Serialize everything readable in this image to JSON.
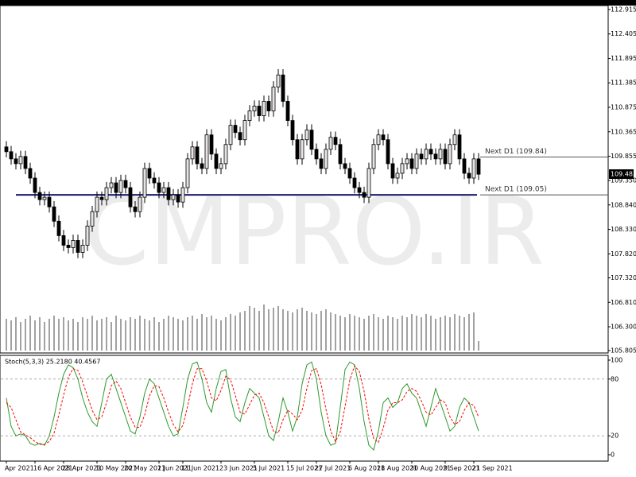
{
  "chart_data": {
    "type": "candlestick",
    "watermark": "CMPRO.IR",
    "ylim": [
      105.77,
      112.98
    ],
    "yticks": [
      112.915,
      112.405,
      111.895,
      111.385,
      110.875,
      110.365,
      109.855,
      {
        "value": 109.35,
        "label": "109.350"
      },
      {
        "value": 108.84,
        "label": "108.840"
      },
      {
        "value": 108.33,
        "label": "108.330"
      },
      {
        "value": 107.82,
        "label": "107.820"
      },
      {
        "value": 107.32,
        "label": "107.320"
      },
      {
        "value": 106.81,
        "label": "106.810"
      },
      {
        "value": 106.3,
        "label": "106.300"
      },
      105.805
    ],
    "last_price": 109.483,
    "levels": [
      {
        "label": "Next D1 (109.84)",
        "value": 109.84
      },
      {
        "label": "Next D1 (109.05)",
        "value": 109.05
      }
    ],
    "level_line_color": "#1a1a6e",
    "up_color": "#e8e4e4",
    "down_color": "#000000",
    "categories": [
      "Apr 2021",
      null,
      null,
      null,
      null,
      null,
      "16 Apr 2021",
      null,
      null,
      null,
      null,
      null,
      "28 Apr 2021",
      null,
      null,
      null,
      null,
      null,
      null,
      "10 May 2021",
      null,
      null,
      null,
      null,
      null,
      "20 May 2021",
      null,
      null,
      null,
      null,
      null,
      null,
      "1 Jun 2021",
      null,
      null,
      null,
      null,
      "11 Jun 2021",
      null,
      null,
      null,
      null,
      null,
      null,
      null,
      "23 Jun 2021",
      null,
      null,
      null,
      null,
      null,
      null,
      "5 Jul 2021",
      null,
      null,
      null,
      null,
      null,
      null,
      "15 Jul 2021",
      null,
      null,
      null,
      null,
      null,
      "27 Jul 2021",
      null,
      null,
      null,
      null,
      null,
      null,
      "6 Aug 2021",
      null,
      null,
      null,
      null,
      null,
      "18 Aug 2021",
      null,
      null,
      null,
      null,
      null,
      null,
      "30 Aug 2021",
      null,
      null,
      null,
      null,
      null,
      null,
      "9 Sep 2021",
      null,
      null,
      null,
      null,
      null,
      "21 Sep 2021",
      null
    ],
    "ohlc": [
      [
        110.05,
        110.17,
        109.83,
        109.95
      ],
      [
        109.95,
        110.07,
        109.68,
        109.8
      ],
      [
        109.8,
        109.92,
        109.58,
        109.7
      ],
      [
        109.7,
        109.97,
        109.58,
        109.85
      ],
      [
        109.85,
        109.97,
        109.48,
        109.6
      ],
      [
        109.6,
        109.72,
        109.28,
        109.4
      ],
      [
        109.4,
        109.52,
        108.98,
        109.1
      ],
      [
        109.1,
        109.22,
        108.83,
        108.95
      ],
      [
        108.95,
        109.12,
        108.83,
        109.0
      ],
      [
        109.0,
        109.12,
        108.68,
        108.8
      ],
      [
        108.8,
        108.92,
        108.38,
        108.5
      ],
      [
        108.5,
        108.62,
        108.08,
        108.2
      ],
      [
        108.2,
        108.32,
        107.88,
        108.0
      ],
      [
        108.0,
        108.12,
        107.83,
        107.95
      ],
      [
        107.95,
        108.22,
        107.83,
        108.1
      ],
      [
        108.1,
        108.22,
        107.73,
        107.85
      ],
      [
        107.85,
        108.12,
        107.73,
        108.0
      ],
      [
        108.0,
        108.52,
        107.88,
        108.4
      ],
      [
        108.4,
        108.82,
        108.28,
        108.7
      ],
      [
        108.7,
        109.12,
        108.58,
        109.0
      ],
      [
        109.0,
        109.12,
        108.83,
        108.95
      ],
      [
        108.95,
        109.32,
        108.83,
        109.2
      ],
      [
        109.2,
        109.42,
        109.08,
        109.3
      ],
      [
        109.3,
        109.42,
        108.98,
        109.1
      ],
      [
        109.1,
        109.47,
        108.98,
        109.35
      ],
      [
        109.35,
        109.47,
        109.08,
        109.2
      ],
      [
        109.2,
        109.32,
        108.68,
        108.8
      ],
      [
        108.8,
        108.92,
        108.58,
        108.7
      ],
      [
        108.7,
        109.12,
        108.58,
        109.0
      ],
      [
        109.0,
        109.72,
        108.88,
        109.6
      ],
      [
        109.6,
        109.72,
        109.28,
        109.4
      ],
      [
        109.4,
        109.52,
        109.18,
        109.3
      ],
      [
        109.3,
        109.42,
        108.98,
        109.1
      ],
      [
        109.1,
        109.32,
        108.98,
        109.2
      ],
      [
        109.2,
        109.32,
        108.83,
        108.95
      ],
      [
        108.95,
        109.17,
        108.83,
        109.05
      ],
      [
        109.05,
        109.17,
        108.78,
        108.9
      ],
      [
        108.9,
        109.32,
        108.78,
        109.2
      ],
      [
        109.2,
        109.92,
        109.08,
        109.8
      ],
      [
        109.8,
        110.17,
        109.68,
        110.05
      ],
      [
        110.05,
        110.17,
        109.58,
        109.7
      ],
      [
        109.7,
        109.82,
        109.48,
        109.6
      ],
      [
        109.6,
        110.42,
        109.48,
        110.3
      ],
      [
        110.3,
        110.42,
        109.78,
        109.9
      ],
      [
        109.9,
        110.02,
        109.48,
        109.6
      ],
      [
        109.6,
        109.82,
        109.48,
        109.7
      ],
      [
        109.7,
        110.22,
        109.58,
        110.1
      ],
      [
        110.1,
        110.62,
        109.98,
        110.5
      ],
      [
        110.5,
        110.62,
        110.23,
        110.35
      ],
      [
        110.35,
        110.47,
        110.08,
        110.2
      ],
      [
        110.2,
        110.72,
        110.08,
        110.6
      ],
      [
        110.6,
        110.92,
        110.48,
        110.8
      ],
      [
        110.8,
        111.02,
        110.68,
        110.9
      ],
      [
        110.9,
        111.02,
        110.58,
        110.7
      ],
      [
        110.7,
        111.12,
        110.58,
        111.0
      ],
      [
        111.0,
        111.12,
        110.68,
        110.8
      ],
      [
        110.8,
        111.42,
        110.68,
        111.3
      ],
      [
        111.3,
        111.67,
        111.18,
        111.55
      ],
      [
        111.55,
        111.67,
        110.88,
        111.0
      ],
      [
        111.0,
        111.12,
        110.48,
        110.6
      ],
      [
        110.6,
        110.72,
        110.08,
        110.2
      ],
      [
        110.2,
        110.32,
        109.68,
        109.8
      ],
      [
        109.8,
        110.32,
        109.68,
        110.2
      ],
      [
        110.2,
        110.52,
        110.08,
        110.4
      ],
      [
        110.4,
        110.52,
        109.88,
        110.0
      ],
      [
        110.0,
        110.12,
        109.68,
        109.8
      ],
      [
        109.8,
        109.92,
        109.48,
        109.6
      ],
      [
        109.6,
        110.12,
        109.48,
        110.0
      ],
      [
        110.0,
        110.37,
        109.88,
        110.25
      ],
      [
        110.25,
        110.37,
        109.98,
        110.1
      ],
      [
        110.1,
        110.22,
        109.58,
        109.7
      ],
      [
        109.7,
        109.82,
        109.48,
        109.6
      ],
      [
        109.6,
        109.72,
        109.28,
        109.4
      ],
      [
        109.4,
        109.52,
        109.08,
        109.2
      ],
      [
        109.2,
        109.32,
        108.98,
        109.1
      ],
      [
        109.1,
        109.22,
        108.88,
        109.0
      ],
      [
        109.0,
        109.72,
        108.88,
        109.6
      ],
      [
        109.6,
        110.22,
        109.48,
        110.1
      ],
      [
        110.1,
        110.42,
        109.98,
        110.3
      ],
      [
        110.3,
        110.42,
        110.08,
        110.2
      ],
      [
        110.2,
        110.32,
        109.58,
        109.7
      ],
      [
        109.7,
        109.82,
        109.28,
        109.4
      ],
      [
        109.4,
        109.62,
        109.28,
        109.5
      ],
      [
        109.5,
        109.82,
        109.38,
        109.7
      ],
      [
        109.7,
        109.92,
        109.58,
        109.8
      ],
      [
        109.8,
        109.92,
        109.48,
        109.6
      ],
      [
        109.6,
        110.02,
        109.48,
        109.9
      ],
      [
        109.9,
        110.02,
        109.68,
        109.8
      ],
      [
        109.8,
        110.12,
        109.68,
        110.0
      ],
      [
        110.0,
        110.12,
        109.78,
        109.9
      ],
      [
        109.9,
        110.02,
        109.68,
        109.8
      ],
      [
        109.8,
        110.12,
        109.68,
        110.0
      ],
      [
        110.0,
        110.12,
        109.58,
        109.7
      ],
      [
        109.7,
        110.22,
        109.58,
        110.1
      ],
      [
        110.1,
        110.42,
        109.98,
        110.3
      ],
      [
        110.3,
        110.42,
        109.68,
        109.8
      ],
      [
        109.8,
        109.92,
        109.38,
        109.5
      ],
      [
        109.5,
        109.62,
        109.28,
        109.4
      ],
      [
        109.4,
        109.92,
        109.28,
        109.8
      ],
      [
        109.8,
        109.92,
        109.36,
        109.48
      ]
    ],
    "volume": [
      40,
      38,
      42,
      36,
      40,
      44,
      38,
      42,
      36,
      40,
      44,
      40,
      42,
      38,
      40,
      36,
      42,
      40,
      44,
      38,
      40,
      42,
      36,
      44,
      40,
      38,
      42,
      40,
      44,
      40,
      38,
      42,
      36,
      40,
      44,
      42,
      40,
      38,
      42,
      44,
      40,
      46,
      42,
      44,
      40,
      38,
      42,
      46,
      44,
      48,
      50,
      56,
      54,
      50,
      58,
      52,
      54,
      56,
      52,
      50,
      48,
      52,
      54,
      50,
      48,
      46,
      50,
      52,
      48,
      46,
      44,
      42,
      46,
      44,
      42,
      40,
      44,
      46,
      42,
      40,
      44,
      42,
      40,
      44,
      42,
      46,
      44,
      42,
      46,
      44,
      40,
      42,
      44,
      42,
      46,
      44,
      42,
      46,
      48,
      12
    ],
    "stoch": {
      "title": "Stoch(5,3,3) 25.2180 40.4567",
      "ylim": [
        0,
        100
      ],
      "yticks": [
        100,
        80,
        20,
        0
      ],
      "levels": [
        80,
        20
      ],
      "series": [
        {
          "name": "Main",
          "color": "#2e9a2e",
          "values": [
            60,
            30,
            20,
            22,
            20,
            12,
            10,
            12,
            10,
            20,
            40,
            65,
            85,
            95,
            92,
            80,
            60,
            45,
            35,
            30,
            55,
            80,
            85,
            70,
            55,
            40,
            25,
            22,
            40,
            65,
            80,
            75,
            60,
            45,
            30,
            20,
            22,
            50,
            80,
            96,
            98,
            80,
            55,
            45,
            70,
            88,
            90,
            60,
            40,
            35,
            55,
            70,
            65,
            60,
            40,
            20,
            15,
            35,
            60,
            45,
            25,
            40,
            75,
            95,
            98,
            80,
            45,
            20,
            10,
            12,
            50,
            90,
            98,
            95,
            70,
            35,
            10,
            5,
            25,
            55,
            60,
            50,
            55,
            70,
            75,
            65,
            60,
            45,
            30,
            50,
            70,
            55,
            40,
            25,
            30,
            50,
            60,
            55,
            40,
            25
          ]
        },
        {
          "name": "Signal",
          "color": "#ff0000",
          "values": [
            55,
            50,
            37,
            24,
            21,
            18,
            14,
            11,
            11,
            14,
            23,
            42,
            63,
            82,
            91,
            89,
            77,
            62,
            47,
            37,
            40,
            55,
            73,
            78,
            70,
            55,
            40,
            29,
            29,
            42,
            62,
            73,
            72,
            60,
            45,
            32,
            24,
            31,
            51,
            75,
            91,
            91,
            78,
            60,
            57,
            68,
            83,
            79,
            63,
            45,
            43,
            53,
            63,
            65,
            55,
            40,
            25,
            23,
            37,
            47,
            43,
            37,
            47,
            70,
            89,
            91,
            74,
            48,
            25,
            14,
            24,
            51,
            79,
            94,
            88,
            67,
            38,
            17,
            13,
            28,
            47,
            55,
            55,
            58,
            67,
            70,
            67,
            57,
            45,
            42,
            50,
            58,
            55,
            40,
            32,
            35,
            47,
            55,
            52,
            40
          ]
        }
      ]
    }
  }
}
